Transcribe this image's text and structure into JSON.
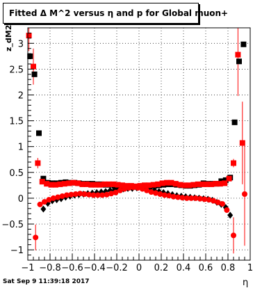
{
  "title": "Fitted Δ M^2 versus η and p for Global muon+",
  "footer_text": "Sat Sep  9 11:39:18 2017",
  "chart_data": {
    "type": "scatter",
    "title": "Fitted Δ M^2 versus η and p for Global muon+",
    "xlabel": "η",
    "ylabel": "z_dM2",
    "xlim": [
      -1,
      1
    ],
    "ylim": [
      -1.2,
      3.3
    ],
    "xticks": [
      -1,
      -0.8,
      -0.6,
      -0.4,
      -0.2,
      0,
      0.2,
      0.4,
      0.6,
      0.8,
      1
    ],
    "xtick_labels": [
      "−1",
      "−0.8",
      "−0.6",
      "−0.4",
      "−0.2",
      "0",
      "0.2",
      "0.4",
      "0.6",
      "0.8",
      "1"
    ],
    "yticks": [
      -1,
      -0.5,
      0,
      0.5,
      1,
      1.5,
      2,
      2.5,
      3
    ],
    "ytick_labels": [
      "−1",
      "−0.5",
      "0",
      "0.5",
      "1",
      "1.5",
      "2",
      "2.5",
      "3"
    ],
    "grid": true,
    "series": [
      {
        "marker": "square",
        "color": "#000000",
        "points": [
          [
            -0.98,
            2.75,
            0.05
          ],
          [
            -0.94,
            2.4,
            0.05
          ],
          [
            -0.9,
            1.26,
            0.05
          ],
          [
            -0.86,
            0.38,
            0.04
          ],
          [
            -0.82,
            0.3,
            0.02
          ],
          [
            -0.78,
            0.29,
            0.02
          ],
          [
            -0.74,
            0.29,
            0.02
          ],
          [
            -0.7,
            0.3,
            0.02
          ],
          [
            -0.66,
            0.31,
            0.02
          ],
          [
            -0.62,
            0.3,
            0.02
          ],
          [
            -0.58,
            0.3,
            0.02
          ],
          [
            -0.54,
            0.29,
            0.02
          ],
          [
            -0.5,
            0.28,
            0.02
          ],
          [
            -0.46,
            0.28,
            0.02
          ],
          [
            -0.42,
            0.28,
            0.02
          ],
          [
            -0.38,
            0.27,
            0.02
          ],
          [
            -0.34,
            0.27,
            0.02
          ],
          [
            -0.3,
            0.26,
            0.02
          ],
          [
            -0.26,
            0.26,
            0.02
          ],
          [
            -0.22,
            0.24,
            0.02
          ],
          [
            -0.18,
            0.23,
            0.02
          ],
          [
            -0.14,
            0.22,
            0.02
          ],
          [
            -0.1,
            0.22,
            0.02
          ],
          [
            -0.06,
            0.22,
            0.02
          ],
          [
            -0.02,
            0.22,
            0.02
          ],
          [
            0.02,
            0.23,
            0.02
          ],
          [
            0.06,
            0.23,
            0.02
          ],
          [
            0.1,
            0.24,
            0.02
          ],
          [
            0.14,
            0.24,
            0.02
          ],
          [
            0.18,
            0.25,
            0.02
          ],
          [
            0.22,
            0.26,
            0.02
          ],
          [
            0.26,
            0.27,
            0.02
          ],
          [
            0.3,
            0.27,
            0.02
          ],
          [
            0.34,
            0.26,
            0.02
          ],
          [
            0.38,
            0.25,
            0.02
          ],
          [
            0.42,
            0.24,
            0.02
          ],
          [
            0.46,
            0.24,
            0.02
          ],
          [
            0.5,
            0.25,
            0.02
          ],
          [
            0.54,
            0.26,
            0.02
          ],
          [
            0.58,
            0.29,
            0.02
          ],
          [
            0.62,
            0.28,
            0.02
          ],
          [
            0.66,
            0.28,
            0.02
          ],
          [
            0.7,
            0.28,
            0.02
          ],
          [
            0.74,
            0.33,
            0.02
          ],
          [
            0.78,
            0.35,
            0.02
          ],
          [
            0.82,
            0.4,
            0.03
          ],
          [
            0.86,
            1.47,
            0.05
          ],
          [
            0.9,
            2.65,
            0.05
          ],
          [
            0.94,
            2.98,
            0.05
          ]
        ]
      },
      {
        "marker": "diamond",
        "color": "#000000",
        "points": [
          [
            -0.86,
            -0.21,
            0.04
          ],
          [
            -0.82,
            -0.1,
            0.02
          ],
          [
            -0.78,
            -0.05,
            0.02
          ],
          [
            -0.74,
            -0.03,
            0.02
          ],
          [
            -0.7,
            -0.01,
            0.02
          ],
          [
            -0.66,
            0.02,
            0.02
          ],
          [
            -0.62,
            0.04,
            0.02
          ],
          [
            -0.58,
            0.06,
            0.02
          ],
          [
            -0.54,
            0.07,
            0.02
          ],
          [
            -0.5,
            0.08,
            0.02
          ],
          [
            -0.46,
            0.09,
            0.02
          ],
          [
            -0.42,
            0.1,
            0.02
          ],
          [
            -0.38,
            0.11,
            0.02
          ],
          [
            -0.34,
            0.12,
            0.02
          ],
          [
            -0.3,
            0.13,
            0.02
          ],
          [
            -0.26,
            0.15,
            0.02
          ],
          [
            -0.22,
            0.16,
            0.02
          ],
          [
            -0.18,
            0.17,
            0.02
          ],
          [
            -0.14,
            0.18,
            0.02
          ],
          [
            -0.1,
            0.19,
            0.02
          ],
          [
            -0.06,
            0.19,
            0.02
          ],
          [
            -0.02,
            0.2,
            0.02
          ],
          [
            0.02,
            0.2,
            0.02
          ],
          [
            0.06,
            0.19,
            0.02
          ],
          [
            0.1,
            0.17,
            0.02
          ],
          [
            0.14,
            0.15,
            0.02
          ],
          [
            0.18,
            0.13,
            0.02
          ],
          [
            0.22,
            0.11,
            0.02
          ],
          [
            0.26,
            0.09,
            0.02
          ],
          [
            0.3,
            0.07,
            0.02
          ],
          [
            0.34,
            0.05,
            0.02
          ],
          [
            0.38,
            0.04,
            0.02
          ],
          [
            0.42,
            0.03,
            0.02
          ],
          [
            0.46,
            0.02,
            0.02
          ],
          [
            0.5,
            0.01,
            0.02
          ],
          [
            0.54,
            0.0,
            0.02
          ],
          [
            0.58,
            -0.01,
            0.02
          ],
          [
            0.62,
            -0.02,
            0.02
          ],
          [
            0.66,
            -0.04,
            0.02
          ],
          [
            0.7,
            -0.08,
            0.02
          ],
          [
            0.74,
            -0.12,
            0.02
          ],
          [
            0.78,
            -0.18,
            0.02
          ],
          [
            0.82,
            -0.33,
            0.04
          ]
        ]
      },
      {
        "marker": "square",
        "color": "#ff0000",
        "points": [
          [
            -0.99,
            3.15,
            0.3
          ],
          [
            -0.95,
            2.55,
            0.35
          ],
          [
            -0.91,
            0.68,
            0.1
          ],
          [
            -0.87,
            0.32,
            0.04
          ],
          [
            -0.83,
            0.28,
            0.02
          ],
          [
            -0.79,
            0.26,
            0.02
          ],
          [
            -0.75,
            0.26,
            0.02
          ],
          [
            -0.71,
            0.27,
            0.02
          ],
          [
            -0.67,
            0.28,
            0.02
          ],
          [
            -0.63,
            0.29,
            0.02
          ],
          [
            -0.59,
            0.3,
            0.02
          ],
          [
            -0.55,
            0.29,
            0.02
          ],
          [
            -0.51,
            0.27,
            0.02
          ],
          [
            -0.47,
            0.27,
            0.02
          ],
          [
            -0.43,
            0.26,
            0.02
          ],
          [
            -0.39,
            0.26,
            0.02
          ],
          [
            -0.35,
            0.26,
            0.02
          ],
          [
            -0.31,
            0.27,
            0.02
          ],
          [
            -0.27,
            0.27,
            0.02
          ],
          [
            -0.23,
            0.27,
            0.02
          ],
          [
            -0.19,
            0.26,
            0.02
          ],
          [
            -0.15,
            0.25,
            0.02
          ],
          [
            -0.11,
            0.24,
            0.02
          ],
          [
            -0.07,
            0.24,
            0.02
          ],
          [
            -0.03,
            0.23,
            0.02
          ],
          [
            0.01,
            0.24,
            0.02
          ],
          [
            0.05,
            0.25,
            0.02
          ],
          [
            0.09,
            0.25,
            0.02
          ],
          [
            0.13,
            0.26,
            0.02
          ],
          [
            0.17,
            0.27,
            0.02
          ],
          [
            0.21,
            0.29,
            0.02
          ],
          [
            0.25,
            0.3,
            0.02
          ],
          [
            0.29,
            0.3,
            0.02
          ],
          [
            0.33,
            0.28,
            0.02
          ],
          [
            0.37,
            0.26,
            0.02
          ],
          [
            0.41,
            0.25,
            0.02
          ],
          [
            0.45,
            0.25,
            0.02
          ],
          [
            0.49,
            0.26,
            0.02
          ],
          [
            0.53,
            0.27,
            0.02
          ],
          [
            0.57,
            0.27,
            0.02
          ],
          [
            0.61,
            0.27,
            0.02
          ],
          [
            0.65,
            0.27,
            0.02
          ],
          [
            0.69,
            0.28,
            0.02
          ],
          [
            0.73,
            0.28,
            0.02
          ],
          [
            0.77,
            0.29,
            0.02
          ],
          [
            0.81,
            0.38,
            0.04
          ],
          [
            0.85,
            0.68,
            0.08
          ],
          [
            0.89,
            2.78,
            0.8
          ],
          [
            0.93,
            1.07,
            0.8
          ]
        ]
      },
      {
        "marker": "circle",
        "color": "#ff0000",
        "points": [
          [
            -0.93,
            -0.76,
            0.25
          ],
          [
            -0.89,
            -0.12,
            0.04
          ],
          [
            -0.85,
            -0.07,
            0.02
          ],
          [
            -0.81,
            -0.03,
            0.02
          ],
          [
            -0.77,
            0.0,
            0.02
          ],
          [
            -0.73,
            0.02,
            0.02
          ],
          [
            -0.69,
            0.04,
            0.02
          ],
          [
            -0.65,
            0.06,
            0.02
          ],
          [
            -0.61,
            0.07,
            0.02
          ],
          [
            -0.57,
            0.08,
            0.02
          ],
          [
            -0.53,
            0.09,
            0.02
          ],
          [
            -0.49,
            0.08,
            0.02
          ],
          [
            -0.45,
            0.07,
            0.02
          ],
          [
            -0.41,
            0.06,
            0.02
          ],
          [
            -0.37,
            0.06,
            0.02
          ],
          [
            -0.33,
            0.06,
            0.02
          ],
          [
            -0.29,
            0.07,
            0.02
          ],
          [
            -0.25,
            0.09,
            0.02
          ],
          [
            -0.21,
            0.11,
            0.02
          ],
          [
            -0.17,
            0.15,
            0.02
          ],
          [
            -0.13,
            0.18,
            0.02
          ],
          [
            -0.09,
            0.2,
            0.02
          ],
          [
            -0.05,
            0.21,
            0.02
          ],
          [
            -0.01,
            0.2,
            0.02
          ],
          [
            0.03,
            0.18,
            0.02
          ],
          [
            0.07,
            0.15,
            0.02
          ],
          [
            0.11,
            0.12,
            0.02
          ],
          [
            0.15,
            0.1,
            0.02
          ],
          [
            0.19,
            0.08,
            0.02
          ],
          [
            0.23,
            0.06,
            0.02
          ],
          [
            0.27,
            0.05,
            0.02
          ],
          [
            0.31,
            0.03,
            0.02
          ],
          [
            0.35,
            0.02,
            0.02
          ],
          [
            0.39,
            0.01,
            0.02
          ],
          [
            0.43,
            0.0,
            0.02
          ],
          [
            0.47,
            0.0,
            0.02
          ],
          [
            0.51,
            0.0,
            0.02
          ],
          [
            0.55,
            -0.01,
            0.02
          ],
          [
            0.59,
            -0.02,
            0.02
          ],
          [
            0.63,
            -0.03,
            0.02
          ],
          [
            0.67,
            -0.05,
            0.02
          ],
          [
            0.71,
            -0.08,
            0.02
          ],
          [
            0.75,
            -0.11,
            0.02
          ],
          [
            0.79,
            -0.23,
            0.04
          ],
          [
            0.85,
            -0.72,
            0.35
          ],
          [
            0.95,
            0.08,
            1.0
          ]
        ]
      }
    ]
  }
}
